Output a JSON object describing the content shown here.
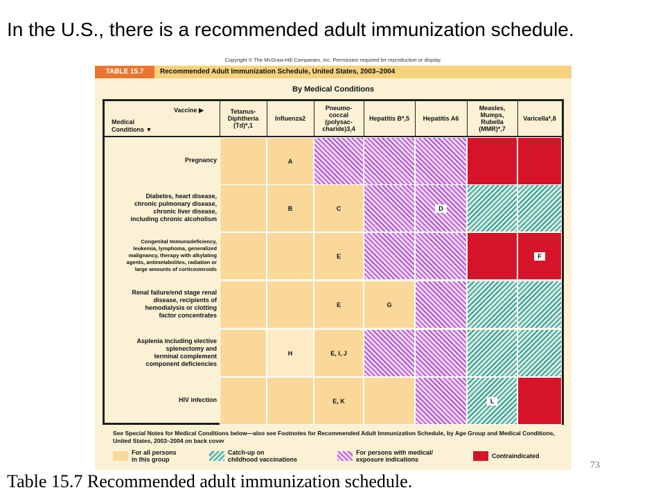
{
  "slide": {
    "heading": "In the U.S., there is a recommended adult immunization schedule.",
    "caption": "Table 15.7 Recommended  adult  immunization  schedule.",
    "page_number": "73"
  },
  "table": {
    "copyright": "Copyright © The McGraw-Hill Companies, Inc. Permission required for reproduction or display.",
    "number": "TABLE 15.7",
    "title": "Recommended Adult Immunization Schedule, United States, 2003–2004",
    "subtitle": "By Medical Conditions",
    "corner_vaccine": "Vaccine ▶",
    "corner_conditions": "Medical\nConditions ▼",
    "columns": [
      "Tetanus-\nDiphtheria\n(Td)*,1",
      "Influenza2",
      "Pneumo-\ncoccal\n(polysac-\ncharide)3,4",
      "Hepatitis B*,5",
      "Hepatitis A6",
      "Measles,\nMumps,\nRubella\n(MMR)*,7",
      "Varicella*,8"
    ],
    "rows": [
      {
        "label": "Pregnancy",
        "cells": [
          {
            "type": "plain",
            "text": ""
          },
          {
            "type": "plain",
            "text": "A"
          },
          {
            "type": "hatch",
            "text": ""
          },
          {
            "type": "hatch",
            "text": ""
          },
          {
            "type": "hatch",
            "text": ""
          },
          {
            "type": "red",
            "text": ""
          },
          {
            "type": "red",
            "text": ""
          }
        ]
      },
      {
        "label": "Diabetes, heart disease,\nchronic pulmonary disease,\nchronic liver disease,\nincluding chronic alcoholism",
        "cells": [
          {
            "type": "plain",
            "text": ""
          },
          {
            "type": "plain",
            "text": "B"
          },
          {
            "type": "plain",
            "text": "C"
          },
          {
            "type": "hatch",
            "text": ""
          },
          {
            "type": "hatch",
            "text": "D",
            "boxed": true
          },
          {
            "type": "green",
            "text": ""
          },
          {
            "type": "green",
            "text": ""
          }
        ]
      },
      {
        "label": "Congenital Immunodeficiency,\nleukemia, lymphoma, generalized\nmalignancy, therapy with alkylating\nagents, antimetabolites, radiation or\nlarge amounts of corticosteroids",
        "cells": [
          {
            "type": "plain",
            "text": ""
          },
          {
            "type": "plain",
            "text": ""
          },
          {
            "type": "plain",
            "text": "E"
          },
          {
            "type": "hatch",
            "text": ""
          },
          {
            "type": "hatch",
            "text": ""
          },
          {
            "type": "red",
            "text": ""
          },
          {
            "type": "red",
            "text": "F",
            "boxed": true
          }
        ]
      },
      {
        "label": "Renal failure/end stage renal\ndisease, recipients of\nhemodialysis or clotting\nfactor concentrates",
        "cells": [
          {
            "type": "plain",
            "text": ""
          },
          {
            "type": "plain",
            "text": ""
          },
          {
            "type": "plain",
            "text": "E"
          },
          {
            "type": "plain",
            "text": "G"
          },
          {
            "type": "hatch",
            "text": ""
          },
          {
            "type": "green",
            "text": ""
          },
          {
            "type": "green",
            "text": ""
          }
        ]
      },
      {
        "label": "Asplenia including elective\nsplenectomy and\nterminal complement\ncomponent deficiencies",
        "cells": [
          {
            "type": "plain",
            "text": ""
          },
          {
            "type": "light",
            "text": "H"
          },
          {
            "type": "plain",
            "text": "E, I, J"
          },
          {
            "type": "hatch",
            "text": ""
          },
          {
            "type": "hatch",
            "text": ""
          },
          {
            "type": "green",
            "text": ""
          },
          {
            "type": "green",
            "text": ""
          }
        ]
      },
      {
        "label": "HIV infection",
        "cells": [
          {
            "type": "plain",
            "text": ""
          },
          {
            "type": "plain",
            "text": ""
          },
          {
            "type": "plain",
            "text": "E, K"
          },
          {
            "type": "plain",
            "text": ""
          },
          {
            "type": "hatch",
            "text": ""
          },
          {
            "type": "green",
            "text": "L",
            "boxed": true
          },
          {
            "type": "red",
            "text": ""
          }
        ]
      }
    ],
    "notes": "See Special Notes for Medical Conditions below—also see Footnotes for Recommended Adult Immunization Schedule, by Age Group and Medical Conditions, United States, 2003–2004 on back cover",
    "legend": [
      {
        "type": "plain",
        "text": "For all persons\nin this group"
      },
      {
        "type": "green",
        "text": "Catch-up on\nchildhood vaccinations"
      },
      {
        "type": "hatch",
        "text": "For persons with medical/\nexposure indications"
      },
      {
        "type": "red",
        "text": "Contraindicated"
      }
    ]
  }
}
